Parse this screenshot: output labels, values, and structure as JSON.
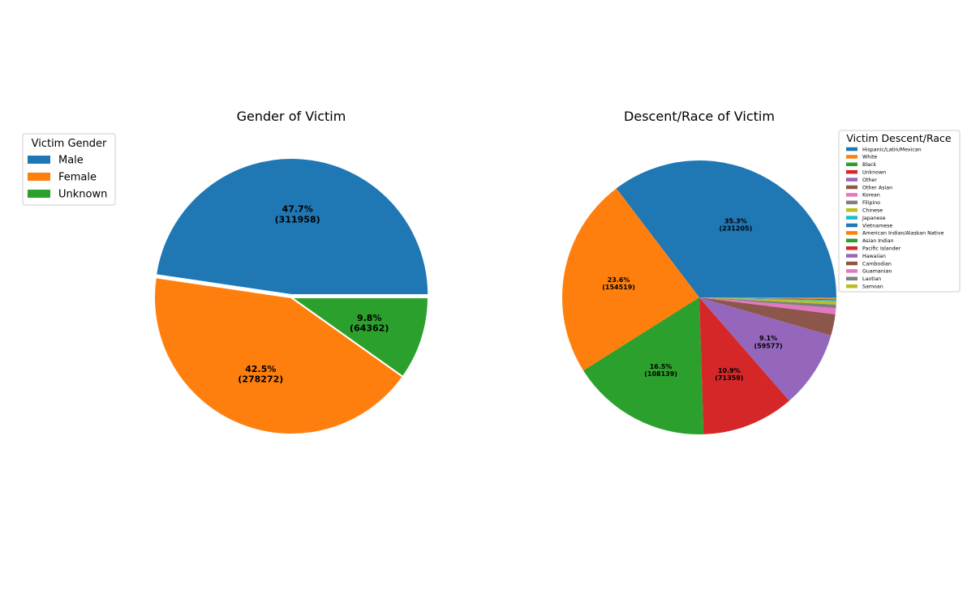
{
  "chart_data": [
    {
      "type": "pie",
      "title": "Gender of Victim",
      "legend_title": "Victim Gender",
      "legend_position": "upper-left",
      "explode": "Male",
      "slices": [
        {
          "label": "Male",
          "value": 311958,
          "pct_label": "47.7%",
          "count_label": "(311958)",
          "color": "#1f77b4"
        },
        {
          "label": "Female",
          "value": 278272,
          "pct_label": "42.5%",
          "count_label": "(278272)",
          "color": "#ff7f0e"
        },
        {
          "label": "Unknown",
          "value": 64362,
          "pct_label": "9.8%",
          "count_label": "(64362)",
          "color": "#2ca02c"
        }
      ]
    },
    {
      "type": "pie",
      "title": "Descent/Race of Victim",
      "legend_title": "Victim Descent/Race",
      "legend_position": "upper-right",
      "slices": [
        {
          "label": "Hispanic/Latin/Mexican",
          "value": 231205,
          "pct_label": "35.3%",
          "count_label": "(231205)",
          "color": "#1f77b4"
        },
        {
          "label": "White",
          "value": 154519,
          "pct_label": "23.6%",
          "count_label": "(154519)",
          "color": "#ff7f0e"
        },
        {
          "label": "Black",
          "value": 108139,
          "pct_label": "16.5%",
          "count_label": "(108139)",
          "color": "#2ca02c"
        },
        {
          "label": "Unknown",
          "value": 71359,
          "pct_label": "10.9%",
          "count_label": "(71359)",
          "color": "#d62728"
        },
        {
          "label": "Other",
          "value": 59577,
          "pct_label": "9.1%",
          "count_label": "(59577)",
          "color": "#9467bd"
        },
        {
          "label": "Other Asian",
          "value": 16500,
          "color": "#8c564b"
        },
        {
          "label": "Korean",
          "value": 4700,
          "color": "#e377c2"
        },
        {
          "label": "Filipino",
          "value": 2800,
          "color": "#7f7f7f"
        },
        {
          "label": "Chinese",
          "value": 2500,
          "color": "#bcbd22"
        },
        {
          "label": "Japanese",
          "value": 800,
          "color": "#17becf"
        },
        {
          "label": "Vietnamese",
          "value": 700,
          "color": "#1f77b4"
        },
        {
          "label": "American Indian/Alaskan Native",
          "value": 600,
          "color": "#ff7f0e"
        },
        {
          "label": "Asian Indian",
          "value": 300,
          "color": "#2ca02c"
        },
        {
          "label": "Pacific Islander",
          "value": 200,
          "color": "#d62728"
        },
        {
          "label": "Hawaiian",
          "value": 150,
          "color": "#9467bd"
        },
        {
          "label": "Cambodian",
          "value": 50,
          "color": "#8c564b"
        },
        {
          "label": "Guamanian",
          "value": 40,
          "color": "#e377c2"
        },
        {
          "label": "Laotian",
          "value": 20,
          "color": "#7f7f7f"
        },
        {
          "label": "Samoan",
          "value": 20,
          "color": "#bcbd22"
        }
      ]
    }
  ]
}
